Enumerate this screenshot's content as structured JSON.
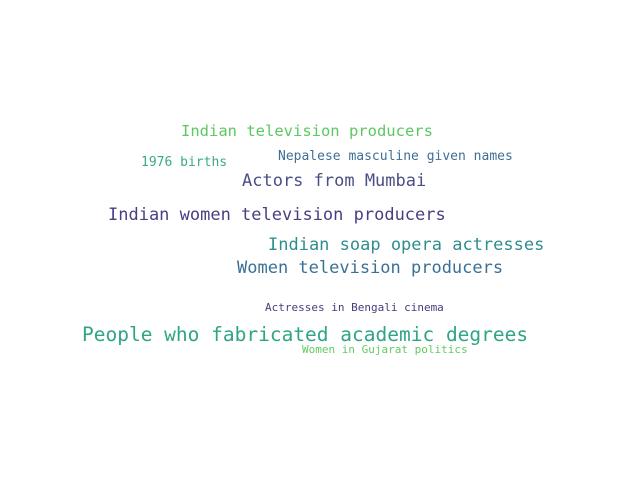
{
  "words": [
    {
      "text": "Indian television producers",
      "color": "#5cc862"
    },
    {
      "text": "Nepalese masculine given names",
      "color": "#3f6f96"
    },
    {
      "text": "1976 births",
      "color": "#3aac83"
    },
    {
      "text": "Actors from Mumbai",
      "color": "#4a4e86"
    },
    {
      "text": "Indian women television producers",
      "color": "#463f82"
    },
    {
      "text": "Indian soap opera actresses",
      "color": "#2f8d8d"
    },
    {
      "text": "Women television producers",
      "color": "#3c6f95"
    },
    {
      "text": "Actresses in Bengali cinema",
      "color": "#453e7d"
    },
    {
      "text": "People who fabricated academic degrees",
      "color": "#2ea584"
    },
    {
      "text": "Women in Gujarat politics",
      "color": "#62cc5f"
    }
  ]
}
